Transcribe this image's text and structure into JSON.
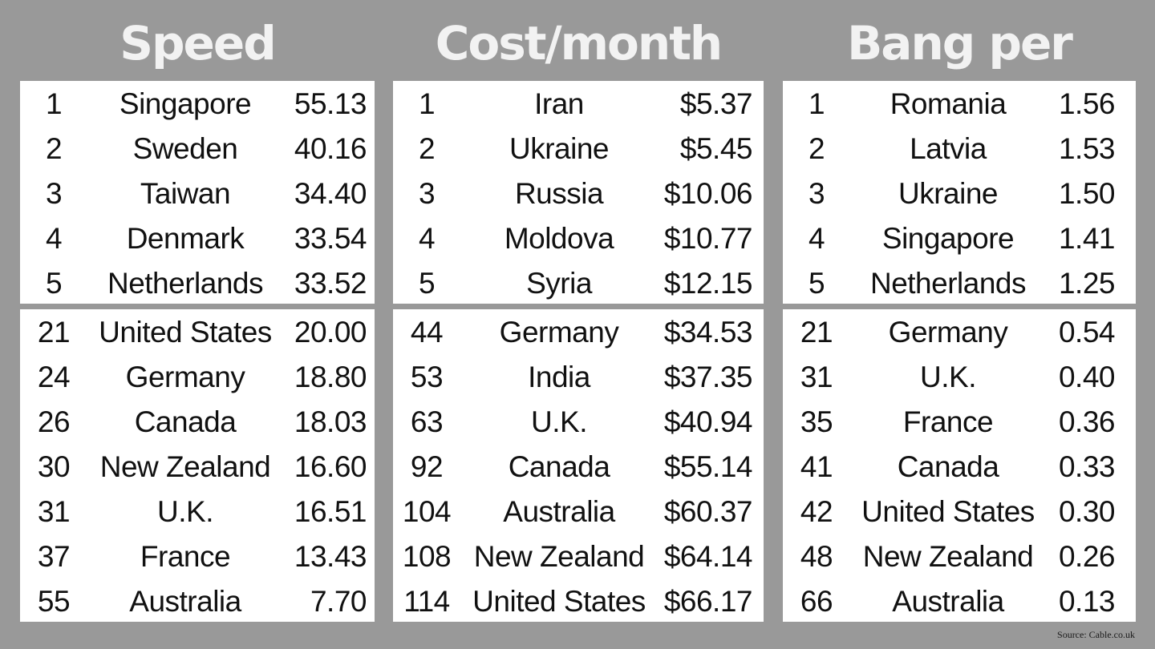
{
  "panels": [
    {
      "title": "Speed",
      "top": [
        {
          "rank": "1",
          "country": "Singapore",
          "value": "55.13"
        },
        {
          "rank": "2",
          "country": "Sweden",
          "value": "40.16"
        },
        {
          "rank": "3",
          "country": "Taiwan",
          "value": "34.40"
        },
        {
          "rank": "4",
          "country": "Denmark",
          "value": "33.54"
        },
        {
          "rank": "5",
          "country": "Netherlands",
          "value": "33.52"
        }
      ],
      "bottom": [
        {
          "rank": "21",
          "country": "United States",
          "value": "20.00"
        },
        {
          "rank": "24",
          "country": "Germany",
          "value": "18.80"
        },
        {
          "rank": "26",
          "country": "Canada",
          "value": "18.03"
        },
        {
          "rank": "30",
          "country": "New Zealand",
          "value": "16.60"
        },
        {
          "rank": "31",
          "country": "U.K.",
          "value": "16.51"
        },
        {
          "rank": "37",
          "country": "France",
          "value": "13.43"
        },
        {
          "rank": "55",
          "country": "Australia",
          "value": "7.70"
        }
      ]
    },
    {
      "title": "Cost/month",
      "top": [
        {
          "rank": "1",
          "country": "Iran",
          "value": "$5.37"
        },
        {
          "rank": "2",
          "country": "Ukraine",
          "value": "$5.45"
        },
        {
          "rank": "3",
          "country": "Russia",
          "value": "$10.06"
        },
        {
          "rank": "4",
          "country": "Moldova",
          "value": "$10.77"
        },
        {
          "rank": "5",
          "country": "Syria",
          "value": "$12.15"
        }
      ],
      "bottom": [
        {
          "rank": "44",
          "country": "Germany",
          "value": "$34.53"
        },
        {
          "rank": "53",
          "country": "India",
          "value": "$37.35"
        },
        {
          "rank": "63",
          "country": "U.K.",
          "value": "$40.94"
        },
        {
          "rank": "92",
          "country": "Canada",
          "value": "$55.14"
        },
        {
          "rank": "104",
          "country": "Australia",
          "value": "$60.37"
        },
        {
          "rank": "108",
          "country": "New Zealand",
          "value": "$64.14"
        },
        {
          "rank": "114",
          "country": "United States",
          "value": "$66.17"
        }
      ]
    },
    {
      "title": "Bang per buck",
      "top": [
        {
          "rank": "1",
          "country": "Romania",
          "value": "1.56"
        },
        {
          "rank": "2",
          "country": "Latvia",
          "value": "1.53"
        },
        {
          "rank": "3",
          "country": "Ukraine",
          "value": "1.50"
        },
        {
          "rank": "4",
          "country": "Singapore",
          "value": "1.41"
        },
        {
          "rank": "5",
          "country": "Netherlands",
          "value": "1.25"
        }
      ],
      "bottom": [
        {
          "rank": "21",
          "country": "Germany",
          "value": "0.54"
        },
        {
          "rank": "31",
          "country": "U.K.",
          "value": "0.40"
        },
        {
          "rank": "35",
          "country": "France",
          "value": "0.36"
        },
        {
          "rank": "41",
          "country": "Canada",
          "value": "0.33"
        },
        {
          "rank": "42",
          "country": "United States",
          "value": "0.30"
        },
        {
          "rank": "48",
          "country": "New Zealand",
          "value": "0.26"
        },
        {
          "rank": "66",
          "country": "Australia",
          "value": "0.13"
        }
      ]
    }
  ],
  "source": "Source: Cable.co.uk",
  "colors": {
    "background": "#999999",
    "panel": "#ffffff",
    "title": "#f2f2f2",
    "text": "#111111"
  }
}
